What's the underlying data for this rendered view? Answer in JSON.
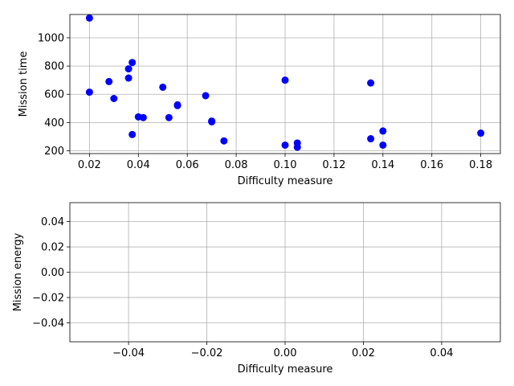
{
  "chart_data": [
    {
      "type": "scatter",
      "xlabel": "Difficulty measure",
      "ylabel": "Mission time",
      "xlim": [
        0.012,
        0.188
      ],
      "ylim": [
        180,
        1165
      ],
      "xticks": [
        0.02,
        0.04,
        0.06,
        0.08,
        0.1,
        0.12,
        0.14,
        0.16,
        0.18
      ],
      "xtick_labels": [
        "0.02",
        "0.04",
        "0.06",
        "0.08",
        "0.10",
        "0.12",
        "0.14",
        "0.16",
        "0.18"
      ],
      "yticks": [
        200,
        400,
        600,
        800,
        1000
      ],
      "ytick_labels": [
        "200",
        "400",
        "600",
        "800",
        "1000"
      ],
      "grid": true,
      "marker_color": "#0000ff",
      "points": [
        {
          "x": 0.02,
          "y": 1140
        },
        {
          "x": 0.02,
          "y": 615
        },
        {
          "x": 0.028,
          "y": 690
        },
        {
          "x": 0.03,
          "y": 570
        },
        {
          "x": 0.036,
          "y": 780
        },
        {
          "x": 0.036,
          "y": 715
        },
        {
          "x": 0.0375,
          "y": 825
        },
        {
          "x": 0.0375,
          "y": 315
        },
        {
          "x": 0.04,
          "y": 440
        },
        {
          "x": 0.042,
          "y": 435
        },
        {
          "x": 0.05,
          "y": 650
        },
        {
          "x": 0.0525,
          "y": 435
        },
        {
          "x": 0.056,
          "y": 525
        },
        {
          "x": 0.056,
          "y": 520
        },
        {
          "x": 0.0675,
          "y": 590
        },
        {
          "x": 0.07,
          "y": 410
        },
        {
          "x": 0.07,
          "y": 405
        },
        {
          "x": 0.075,
          "y": 270
        },
        {
          "x": 0.1,
          "y": 700
        },
        {
          "x": 0.1,
          "y": 240
        },
        {
          "x": 0.105,
          "y": 255
        },
        {
          "x": 0.105,
          "y": 225
        },
        {
          "x": 0.135,
          "y": 680
        },
        {
          "x": 0.135,
          "y": 285
        },
        {
          "x": 0.14,
          "y": 340
        },
        {
          "x": 0.14,
          "y": 240
        },
        {
          "x": 0.18,
          "y": 325
        }
      ]
    },
    {
      "type": "scatter",
      "xlabel": "Difficulty measure",
      "ylabel": "Mission energy",
      "xlim": [
        -0.055,
        0.055
      ],
      "ylim": [
        -0.055,
        0.055
      ],
      "xticks": [
        -0.04,
        -0.02,
        0.0,
        0.02,
        0.04
      ],
      "xtick_labels": [
        "−0.04",
        "−0.02",
        "0.00",
        "0.02",
        "0.04"
      ],
      "yticks": [
        -0.04,
        -0.02,
        0.0,
        0.02,
        0.04
      ],
      "ytick_labels": [
        "−0.04",
        "−0.02",
        "0.00",
        "0.02",
        "0.04"
      ],
      "grid": true,
      "marker_color": "#0000ff",
      "points": []
    }
  ]
}
